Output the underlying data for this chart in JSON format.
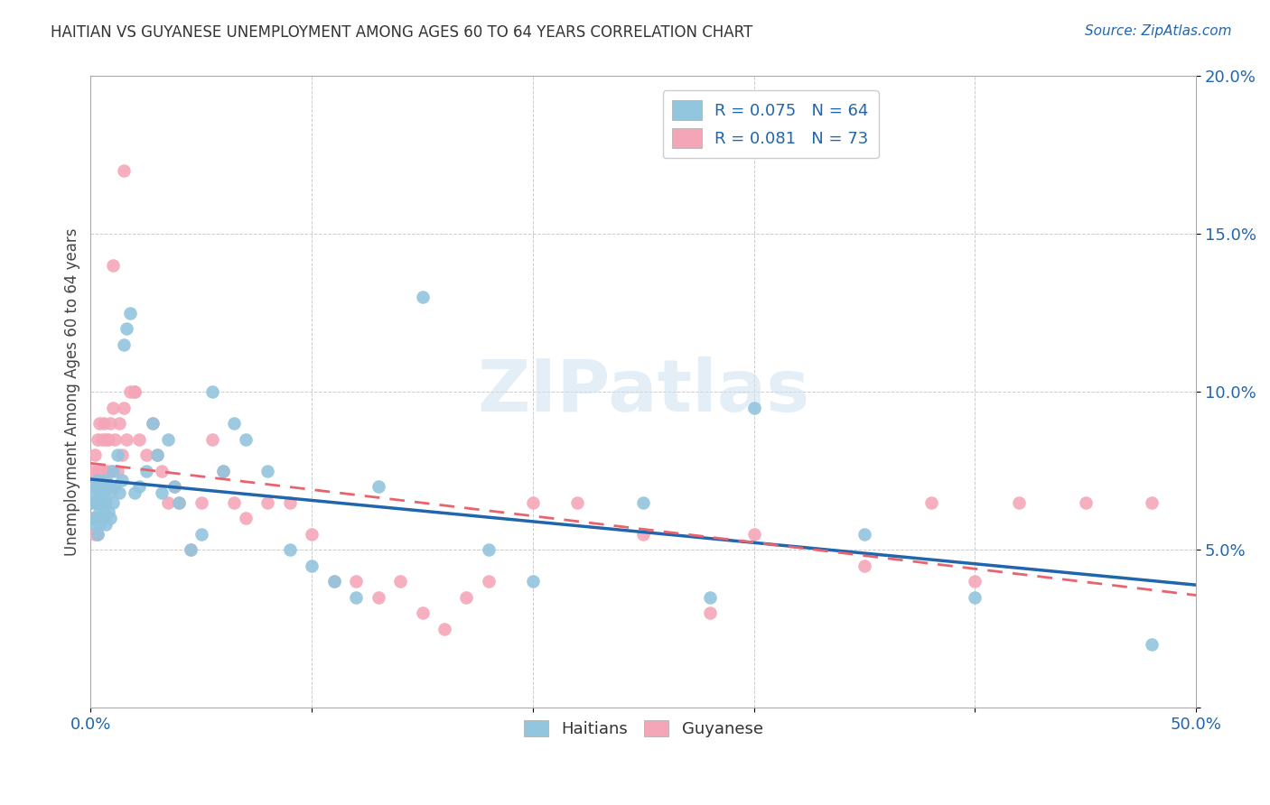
{
  "title": "HAITIAN VS GUYANESE UNEMPLOYMENT AMONG AGES 60 TO 64 YEARS CORRELATION CHART",
  "source": "Source: ZipAtlas.com",
  "ylabel": "Unemployment Among Ages 60 to 64 years",
  "xlabel": "",
  "xlim": [
    0,
    0.5
  ],
  "ylim": [
    0,
    0.2
  ],
  "xticks": [
    0.0,
    0.1,
    0.2,
    0.3,
    0.4,
    0.5
  ],
  "yticks": [
    0.0,
    0.05,
    0.1,
    0.15,
    0.2
  ],
  "xticklabels": [
    "0.0%",
    "",
    "",
    "",
    "",
    "50.0%"
  ],
  "yticklabels": [
    "",
    "5.0%",
    "10.0%",
    "15.0%",
    "20.0%"
  ],
  "blue_color": "#92c5de",
  "pink_color": "#f4a6b8",
  "line_blue_color": "#2166ac",
  "line_pink_color": "#e8636d",
  "legend_blue_label": "R = 0.075   N = 64",
  "legend_pink_label": "R = 0.081   N = 73",
  "legend_bottom_blue": "Haitians",
  "legend_bottom_pink": "Guyanese",
  "watermark": "ZIPatlas",
  "haitians_x": [
    0.0,
    0.001,
    0.001,
    0.002,
    0.002,
    0.002,
    0.003,
    0.003,
    0.003,
    0.003,
    0.004,
    0.004,
    0.004,
    0.005,
    0.005,
    0.005,
    0.006,
    0.006,
    0.007,
    0.007,
    0.007,
    0.008,
    0.008,
    0.009,
    0.009,
    0.01,
    0.01,
    0.011,
    0.012,
    0.013,
    0.014,
    0.015,
    0.016,
    0.018,
    0.02,
    0.022,
    0.025,
    0.028,
    0.03,
    0.032,
    0.035,
    0.038,
    0.04,
    0.045,
    0.05,
    0.055,
    0.06,
    0.065,
    0.07,
    0.08,
    0.09,
    0.1,
    0.11,
    0.12,
    0.13,
    0.15,
    0.18,
    0.2,
    0.25,
    0.28,
    0.3,
    0.35,
    0.4,
    0.48
  ],
  "haitians_y": [
    0.065,
    0.068,
    0.06,
    0.07,
    0.065,
    0.058,
    0.072,
    0.065,
    0.06,
    0.055,
    0.068,
    0.062,
    0.058,
    0.07,
    0.065,
    0.06,
    0.068,
    0.062,
    0.072,
    0.065,
    0.058,
    0.07,
    0.062,
    0.068,
    0.06,
    0.075,
    0.065,
    0.07,
    0.08,
    0.068,
    0.072,
    0.115,
    0.12,
    0.125,
    0.068,
    0.07,
    0.075,
    0.09,
    0.08,
    0.068,
    0.085,
    0.07,
    0.065,
    0.05,
    0.055,
    0.1,
    0.075,
    0.09,
    0.085,
    0.075,
    0.05,
    0.045,
    0.04,
    0.035,
    0.07,
    0.13,
    0.05,
    0.04,
    0.065,
    0.035,
    0.095,
    0.055,
    0.035,
    0.02
  ],
  "guyanese_x": [
    0.0,
    0.001,
    0.001,
    0.002,
    0.002,
    0.002,
    0.003,
    0.003,
    0.003,
    0.003,
    0.004,
    0.004,
    0.005,
    0.005,
    0.005,
    0.006,
    0.006,
    0.007,
    0.007,
    0.007,
    0.008,
    0.008,
    0.009,
    0.009,
    0.01,
    0.01,
    0.011,
    0.012,
    0.013,
    0.014,
    0.015,
    0.016,
    0.018,
    0.02,
    0.022,
    0.025,
    0.028,
    0.03,
    0.032,
    0.035,
    0.038,
    0.04,
    0.045,
    0.05,
    0.055,
    0.06,
    0.065,
    0.07,
    0.08,
    0.09,
    0.1,
    0.11,
    0.12,
    0.13,
    0.14,
    0.15,
    0.16,
    0.17,
    0.18,
    0.2,
    0.22,
    0.25,
    0.28,
    0.3,
    0.35,
    0.38,
    0.4,
    0.42,
    0.45,
    0.48,
    0.01,
    0.015,
    0.02
  ],
  "guyanese_y": [
    0.065,
    0.075,
    0.06,
    0.08,
    0.07,
    0.055,
    0.085,
    0.075,
    0.065,
    0.055,
    0.09,
    0.07,
    0.085,
    0.075,
    0.06,
    0.09,
    0.07,
    0.085,
    0.075,
    0.065,
    0.085,
    0.07,
    0.09,
    0.075,
    0.095,
    0.07,
    0.085,
    0.075,
    0.09,
    0.08,
    0.095,
    0.085,
    0.1,
    0.1,
    0.085,
    0.08,
    0.09,
    0.08,
    0.075,
    0.065,
    0.07,
    0.065,
    0.05,
    0.065,
    0.085,
    0.075,
    0.065,
    0.06,
    0.065,
    0.065,
    0.055,
    0.04,
    0.04,
    0.035,
    0.04,
    0.03,
    0.025,
    0.035,
    0.04,
    0.065,
    0.065,
    0.055,
    0.03,
    0.055,
    0.045,
    0.065,
    0.04,
    0.065,
    0.065,
    0.065,
    0.14,
    0.17,
    0.1
  ]
}
